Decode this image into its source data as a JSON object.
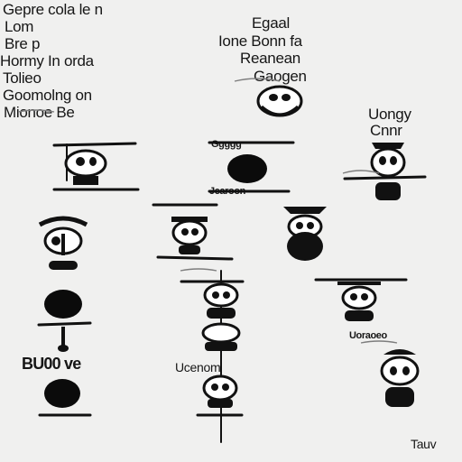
{
  "top_left_heading": [
    "Gepre cola le n",
    "Lom",
    "Bre p",
    "Hormy In orda",
    "Tolieo",
    "Goomolng on",
    "Mionoe Be"
  ],
  "top_center_heading": [
    "Egaal",
    "Ione Bonn fa",
    "Reanean",
    "Gaogen"
  ],
  "right_heading": [
    "Uongy",
    "Cnnr"
  ],
  "bubble_label_1": "BU00 ve",
  "bubble_label_2": "Ucenom",
  "bubble_label_3": "Uoraoeo",
  "corner_mark": "Tauv",
  "figure_captions": [
    "Ggggg",
    "Jearoon"
  ],
  "palette": {
    "background": "#f0f0ef",
    "ink": "#111111",
    "soft_ink": "#7d7d7d"
  }
}
